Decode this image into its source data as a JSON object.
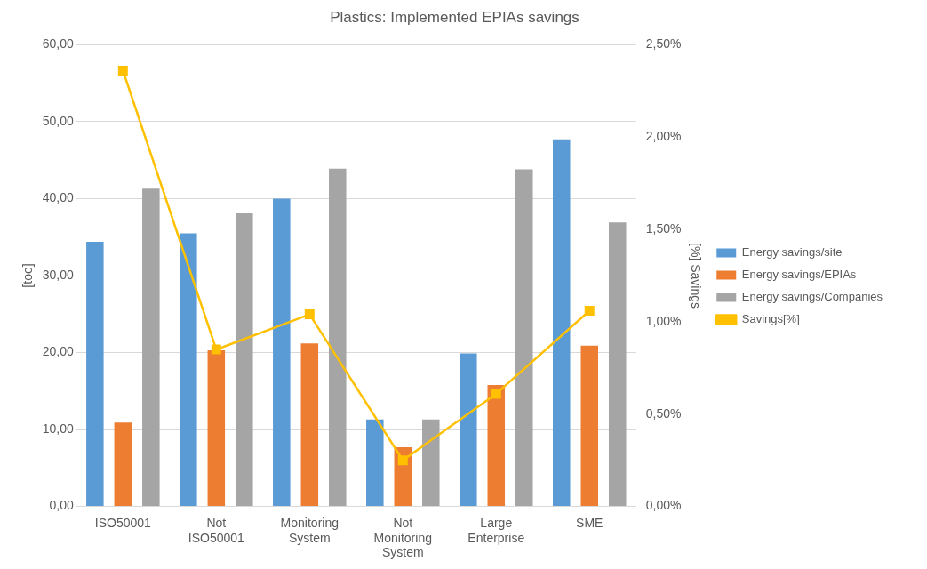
{
  "chart_data": {
    "type": "bar",
    "title": "Plastics: Implemented EPIAs savings",
    "ylabel": "[toe]",
    "y2label": "[%] Savings",
    "categories": [
      "ISO50001",
      "Not ISO50001",
      "Monitoring System",
      "Not Monitoring System",
      "Large Enterprise",
      "SME"
    ],
    "series": [
      {
        "name": "Energy savings/site",
        "color": "#5b9bd5",
        "values": [
          34.4,
          35.5,
          40.0,
          11.3,
          19.9,
          47.7
        ]
      },
      {
        "name": "Energy savings/EPIAs",
        "color": "#ed7d31",
        "values": [
          10.9,
          20.3,
          21.2,
          7.7,
          15.8,
          20.9
        ]
      },
      {
        "name": "Energy savings/Companies",
        "color": "#a5a5a5",
        "values": [
          41.3,
          38.1,
          43.9,
          11.3,
          43.8,
          36.9
        ]
      },
      {
        "name": "Savings[%]",
        "type": "line",
        "axis": "y2",
        "color": "#ffc000",
        "marker": "square",
        "values": [
          2.36,
          0.85,
          1.04,
          0.25,
          0.61,
          1.06
        ]
      }
    ],
    "ylim": [
      0,
      60
    ],
    "yticks": [
      {
        "value": 0,
        "label": "0,00"
      },
      {
        "value": 10,
        "label": "10,00"
      },
      {
        "value": 20,
        "label": "20,00"
      },
      {
        "value": 30,
        "label": "30,00"
      },
      {
        "value": 40,
        "label": "40,00"
      },
      {
        "value": 50,
        "label": "50,00"
      },
      {
        "value": 60,
        "label": "60,00"
      }
    ],
    "y2lim": [
      0,
      2.5
    ],
    "y2ticks": [
      {
        "value": 0,
        "label": "0,00%"
      },
      {
        "value": 0.5,
        "label": "0,50%"
      },
      {
        "value": 1,
        "label": "1,00%"
      },
      {
        "value": 1.5,
        "label": "1,50%"
      },
      {
        "value": 2,
        "label": "2,00%"
      },
      {
        "value": 2.5,
        "label": "2,50%"
      }
    ],
    "grid": "y",
    "legend": "right"
  }
}
